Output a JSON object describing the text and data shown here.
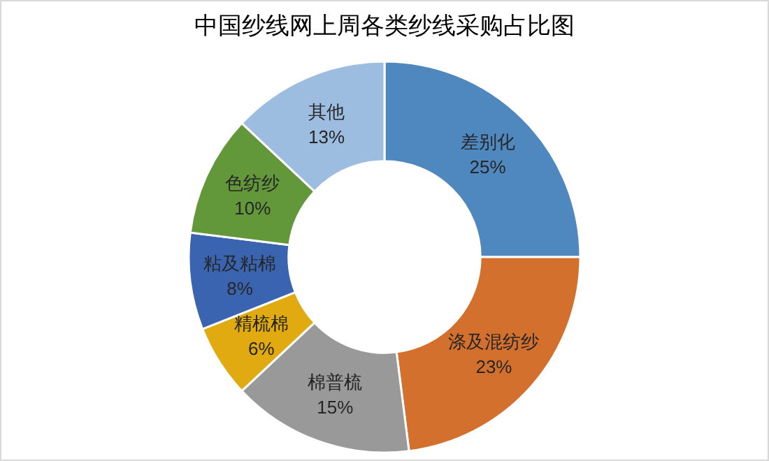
{
  "chart_data": {
    "type": "donut",
    "title": "中国纱线网上周各类纱线采购占比图",
    "categories": [
      "差别化",
      "涤及混纺纱",
      "棉普梳",
      "精梳棉",
      "粘及粘棉",
      "色纺纱",
      "其他"
    ],
    "values": [
      25,
      23,
      15,
      6,
      8,
      10,
      13
    ],
    "value_labels": [
      "25%",
      "23%",
      "15%",
      "6%",
      "8%",
      "10%",
      "13%"
    ],
    "colors": [
      "#4f87bf",
      "#d4702e",
      "#999999",
      "#e0aa10",
      "#3b64b0",
      "#62983a",
      "#9dbde0"
    ],
    "legend": false
  }
}
